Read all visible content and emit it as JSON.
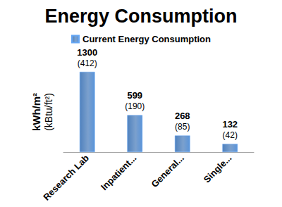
{
  "chart_data": {
    "type": "bar",
    "title": "Energy Consumption",
    "ylabel": "kWh/m²",
    "ylabel_secondary": "(kBtu/ft²)",
    "categories": [
      "Research Lab",
      "Inpatient...",
      "General...",
      "Single..."
    ],
    "series": [
      {
        "name": "Current Energy Consumption",
        "color": "#4f81bd",
        "values": [
          1300,
          599,
          268,
          132
        ],
        "value_labels_secondary": [
          "(412)",
          "(190)",
          "(85)",
          "(42)"
        ]
      }
    ],
    "ylim": [
      0,
      1300
    ],
    "grid": false,
    "legend": "top",
    "data_labels": true,
    "tick_labels": "x"
  }
}
